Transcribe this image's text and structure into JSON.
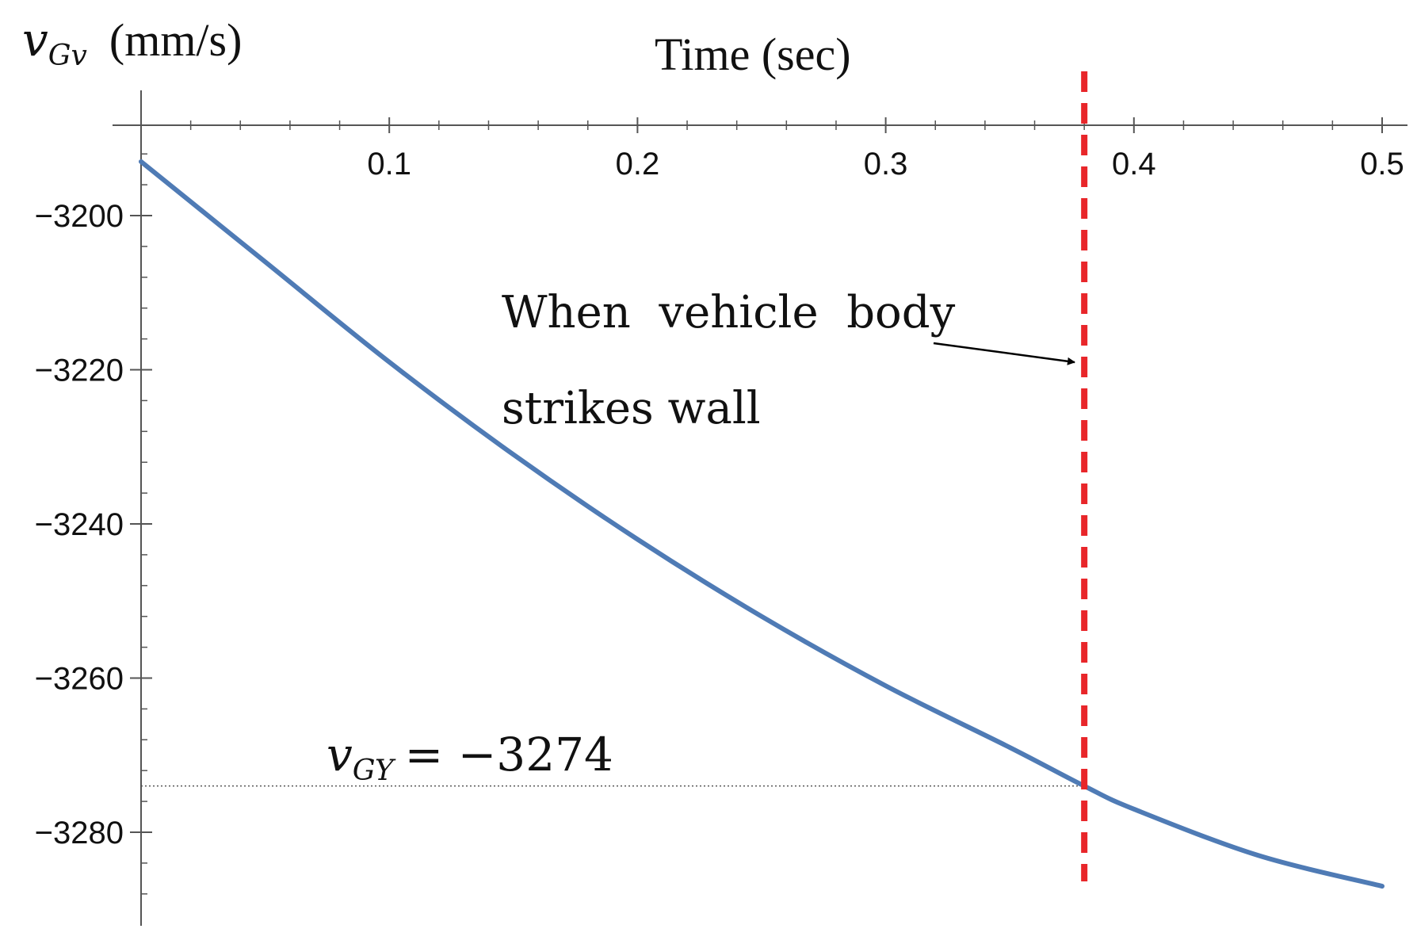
{
  "chart_data": {
    "type": "line",
    "xlabel": "Time (sec)",
    "ylabel_symbol": "v",
    "ylabel_subscript": "Gv",
    "ylabel_units": "(mm/s)",
    "xlim": [
      0,
      0.5
    ],
    "ylim": [
      -3290,
      -3188
    ],
    "x_ticks": [
      0.1,
      0.2,
      0.3,
      0.4,
      0.5
    ],
    "x_tick_labels": [
      "0.1",
      "0.2",
      "0.3",
      "0.4",
      "0.5"
    ],
    "y_ticks": [
      -3200,
      -3220,
      -3240,
      -3260,
      -3280
    ],
    "y_tick_labels": [
      "−3200",
      "−3220",
      "−3240",
      "−3260",
      "−3280"
    ],
    "series": [
      {
        "color": "#4f7bb5",
        "x": [
          0,
          0.05,
          0.1,
          0.15,
          0.2,
          0.25,
          0.3,
          0.35,
          0.38,
          0.4,
          0.45,
          0.5
        ],
        "y": [
          -3193,
          -3206,
          -3219,
          -3231,
          -3242,
          -3252,
          -3261,
          -3269,
          -3274,
          -3277,
          -3283,
          -3287
        ]
      }
    ],
    "annotations": {
      "event_line": {
        "x": 0.38,
        "color": "#e8262a",
        "style": "dashed"
      },
      "event_text_line1": "When  vehicle  body",
      "event_text_line2": "strikes wall",
      "reference": {
        "y": -3274,
        "symbol": "v",
        "subscript": "GY",
        "value_text": "= −3274"
      }
    }
  }
}
